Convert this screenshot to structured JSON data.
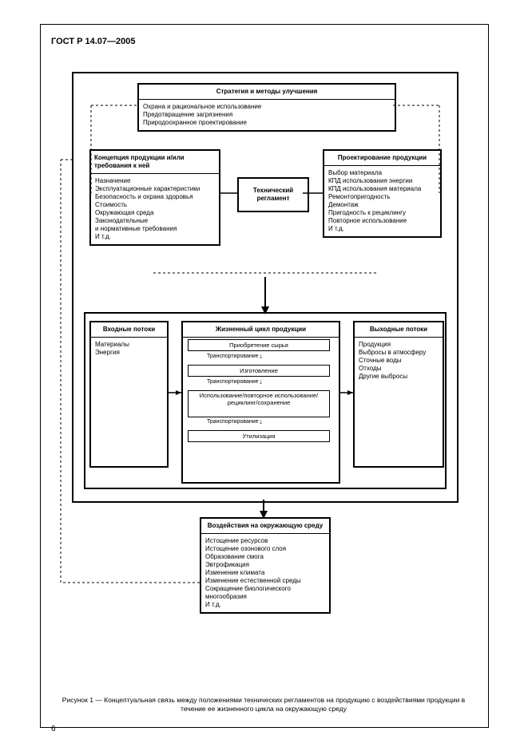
{
  "document": {
    "standard_code": "ГОСТ Р 14.07—2005",
    "page_number": "6",
    "caption": "Рисунок 1 — Концептуальная связь между положениями технических регламентов на продукцию с воздействиями продукции в течение ее жизненного цикла на окружающую среду"
  },
  "colors": {
    "bg": "#ffffff",
    "stroke": "#000000",
    "text": "#000000"
  },
  "boxes": {
    "strategy": {
      "title": "Стратегия и методы улучшения",
      "body": "Охрана и рациональное использование\nПредотвращение загрязнения\nПриродоохранное проектирование"
    },
    "concept": {
      "title": "Концепция продукции и/или требования к ней",
      "body": "Назначение\nЭксплуатационные характеристики\nБезопасность и охрана здоровья\nСтоимость\nОкружающая среда\nЗаконодательные\nи нормативные требования\nИ т.д."
    },
    "techreg": {
      "label": "Технический регламент"
    },
    "design": {
      "title": "Проектирование продукции",
      "body": "Выбор материала\nКПД использования энергии\nКПД использования материала\nРемонтопригодность\nДемонтаж\nПригодность к рециклингу\nПовторное использование\nИ т.д."
    },
    "inputs": {
      "title": "Входные потоки",
      "body": "Материалы\nЭнергия"
    },
    "lifecycle": {
      "title": "Жизненный цикл продукции",
      "stages": [
        "Приобретение сырья",
        "Изготовление",
        "Использование/повторное использование/рециклинг/сохранение",
        "Утилизация"
      ],
      "transport": "Транспортирование"
    },
    "outputs": {
      "title": "Выходные потоки",
      "body": "Продукция\nВыбросы в атмосферу\nСточные воды\nОтходы\nДругие выбросы"
    },
    "impacts": {
      "title": "Воздействия на окружающую среду",
      "body": "Истощение ресурсов\nИстощение озонового слоя\nОбразование смога\nЭвтрофикация\nИзменение климата\nИзменение естественной среды\nСокращение биологического многообразия\nИ т.д."
    }
  }
}
